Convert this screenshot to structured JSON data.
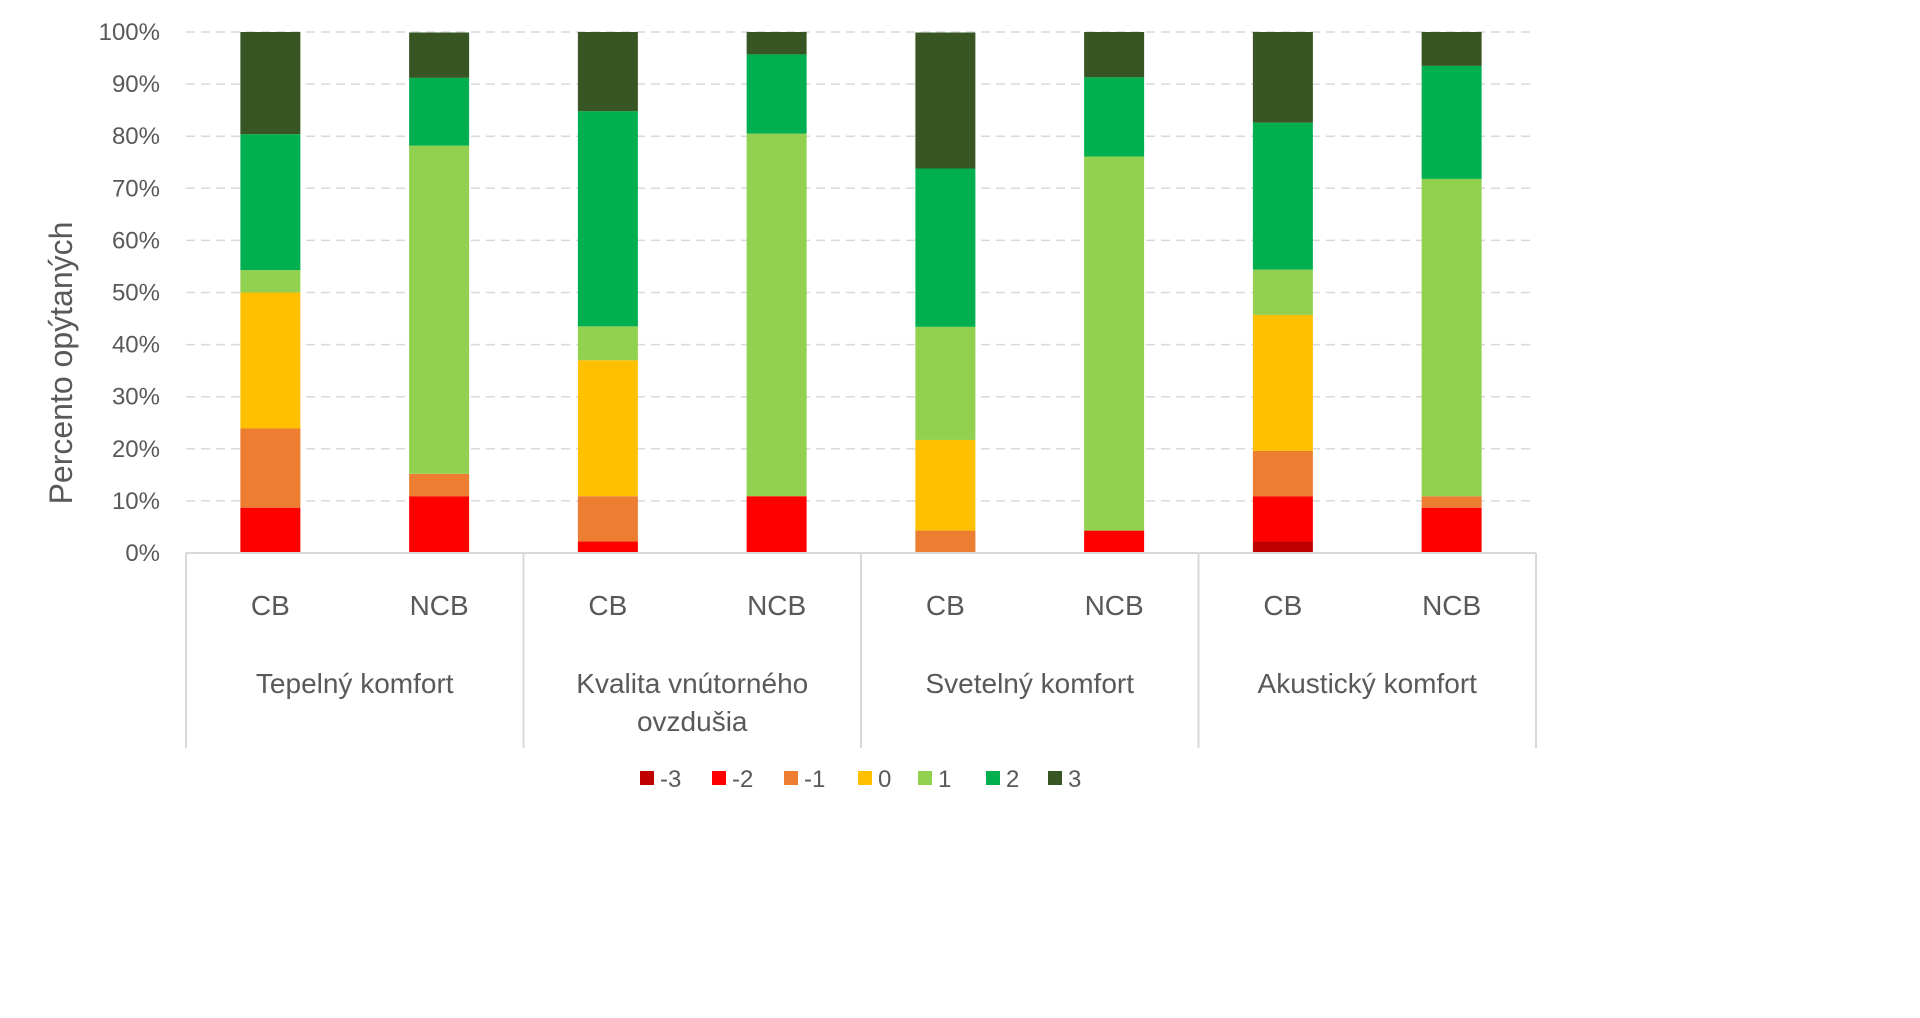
{
  "chart_data": {
    "type": "bar",
    "stacked": true,
    "percent_stacked": true,
    "title": "",
    "ylabel": "Percento opýtaných",
    "xlabel": "",
    "ylim": [
      0,
      100
    ],
    "yticks": [
      "0%",
      "10%",
      "20%",
      "30%",
      "40%",
      "50%",
      "60%",
      "70%",
      "80%",
      "90%",
      "100%"
    ],
    "grid": true,
    "legend_position": "bottom",
    "groups": [
      {
        "label_lines": [
          "Tepelný komfort"
        ],
        "categories": [
          "CB",
          "NCB"
        ]
      },
      {
        "label_lines": [
          "Kvalita vnútorného",
          "ovzdušia"
        ],
        "categories": [
          "CB",
          "NCB"
        ]
      },
      {
        "label_lines": [
          "Svetelný komfort"
        ],
        "categories": [
          "CB",
          "NCB"
        ]
      },
      {
        "label_lines": [
          "Akustický komfort"
        ],
        "categories": [
          "CB",
          "NCB"
        ]
      }
    ],
    "categories": [
      "CB",
      "NCB",
      "CB",
      "NCB",
      "CB",
      "NCB",
      "CB",
      "NCB"
    ],
    "series": [
      {
        "name": "-3",
        "color": "#C00000",
        "values": [
          0,
          0,
          0,
          0,
          0,
          0,
          2.2,
          0
        ]
      },
      {
        "name": "-2",
        "color": "#FF0000",
        "values": [
          8.7,
          10.9,
          2.2,
          10.9,
          0,
          4.3,
          8.7,
          8.7
        ]
      },
      {
        "name": "-1",
        "color": "#ED7D31",
        "values": [
          15.2,
          4.3,
          8.7,
          0,
          4.3,
          0,
          8.7,
          2.2
        ]
      },
      {
        "name": "0",
        "color": "#FFC000",
        "values": [
          26.1,
          0,
          26.1,
          0,
          17.4,
          0,
          26.1,
          0
        ]
      },
      {
        "name": "1",
        "color": "#92D050",
        "values": [
          4.3,
          63.0,
          6.5,
          69.6,
          21.7,
          71.8,
          8.7,
          60.9
        ]
      },
      {
        "name": "2",
        "color": "#00B050",
        "values": [
          26.1,
          13.0,
          41.3,
          15.2,
          30.4,
          15.2,
          28.2,
          21.7
        ]
      },
      {
        "name": "3",
        "color": "#375623",
        "values": [
          19.6,
          8.7,
          15.2,
          4.3,
          26.1,
          8.7,
          17.4,
          6.5
        ]
      }
    ]
  }
}
